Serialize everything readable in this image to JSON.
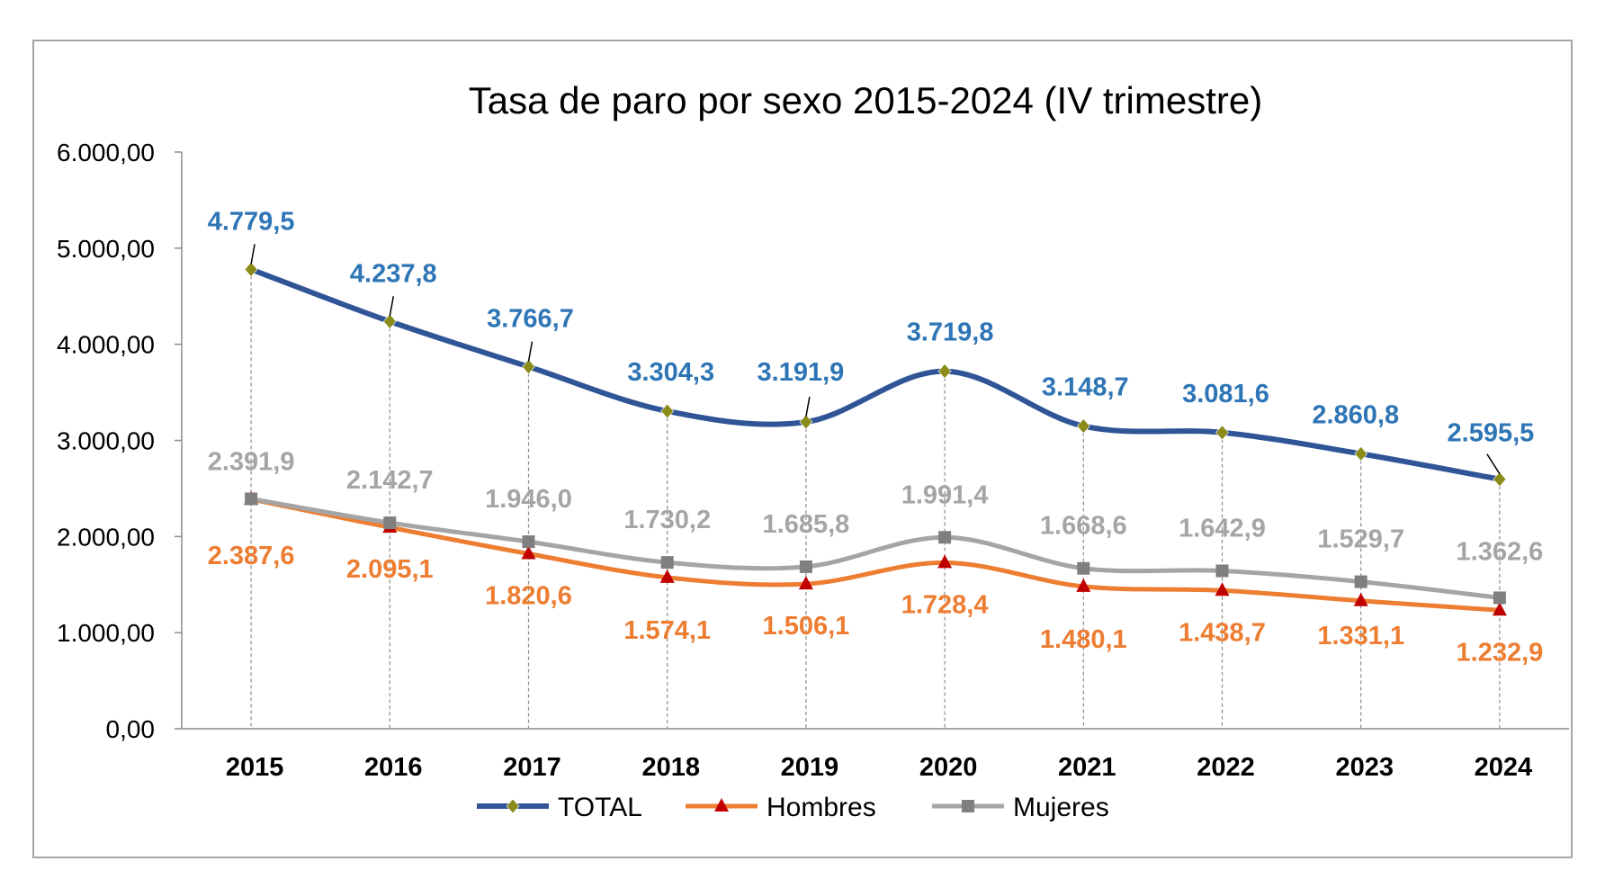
{
  "chart_data": {
    "type": "line",
    "title": "Tasa de paro por sexo 2015-2024 (IV trimestre)",
    "categories": [
      "2015",
      "2016",
      "2017",
      "2018",
      "2019",
      "2020",
      "2021",
      "2022",
      "2023",
      "2024"
    ],
    "ylim": [
      0,
      6000
    ],
    "yticks": [
      0,
      1000,
      2000,
      3000,
      4000,
      5000,
      6000
    ],
    "ytick_labels": [
      "0,00",
      "1.000,00",
      "2.000,00",
      "3.000,00",
      "4.000,00",
      "5.000,00",
      "6.000,00"
    ],
    "grid": "vertical dashed drop lines",
    "legend_position": "bottom",
    "series": [
      {
        "name": "TOTAL",
        "color": "#2f5597",
        "label_color": "#2e75b6",
        "marker": "diamond",
        "marker_color": "#8b8b1a",
        "values": [
          4779.5,
          4237.8,
          3766.7,
          3304.3,
          3191.9,
          3719.8,
          3148.7,
          3081.6,
          2860.8,
          2595.5
        ],
        "labels": [
          "4.779,5",
          "4.237,8",
          "3.766,7",
          "3.304,3",
          "3.191,9",
          "3.719,8",
          "3.148,7",
          "3.081,6",
          "2.860,8",
          "2.595,5"
        ]
      },
      {
        "name": "Hombres",
        "color": "#ed7d31",
        "label_color": "#ed7d31",
        "marker": "triangle",
        "marker_color": "#c00000",
        "values": [
          2387.6,
          2095.1,
          1820.6,
          1574.1,
          1506.1,
          1728.4,
          1480.1,
          1438.7,
          1331.1,
          1232.9
        ],
        "labels": [
          "2.387,6",
          "2.095,1",
          "1.820,6",
          "1.574,1",
          "1.506,1",
          "1.728,4",
          "1.480,1",
          "1.438,7",
          "1.331,1",
          "1.232,9"
        ]
      },
      {
        "name": "Mujeres",
        "color": "#a5a5a5",
        "label_color": "#a5a5a5",
        "marker": "square",
        "marker_color": "#7f7f7f",
        "values": [
          2391.9,
          2142.7,
          1946.0,
          1730.2,
          1685.8,
          1991.4,
          1668.6,
          1642.9,
          1529.7,
          1362.6
        ],
        "labels": [
          "2.391,9",
          "2.142,7",
          "1.946,0",
          "1.730,2",
          "1.685,8",
          "1.991,4",
          "1.668,6",
          "1.642,9",
          "1.529,7",
          "1.362,6"
        ]
      }
    ]
  }
}
